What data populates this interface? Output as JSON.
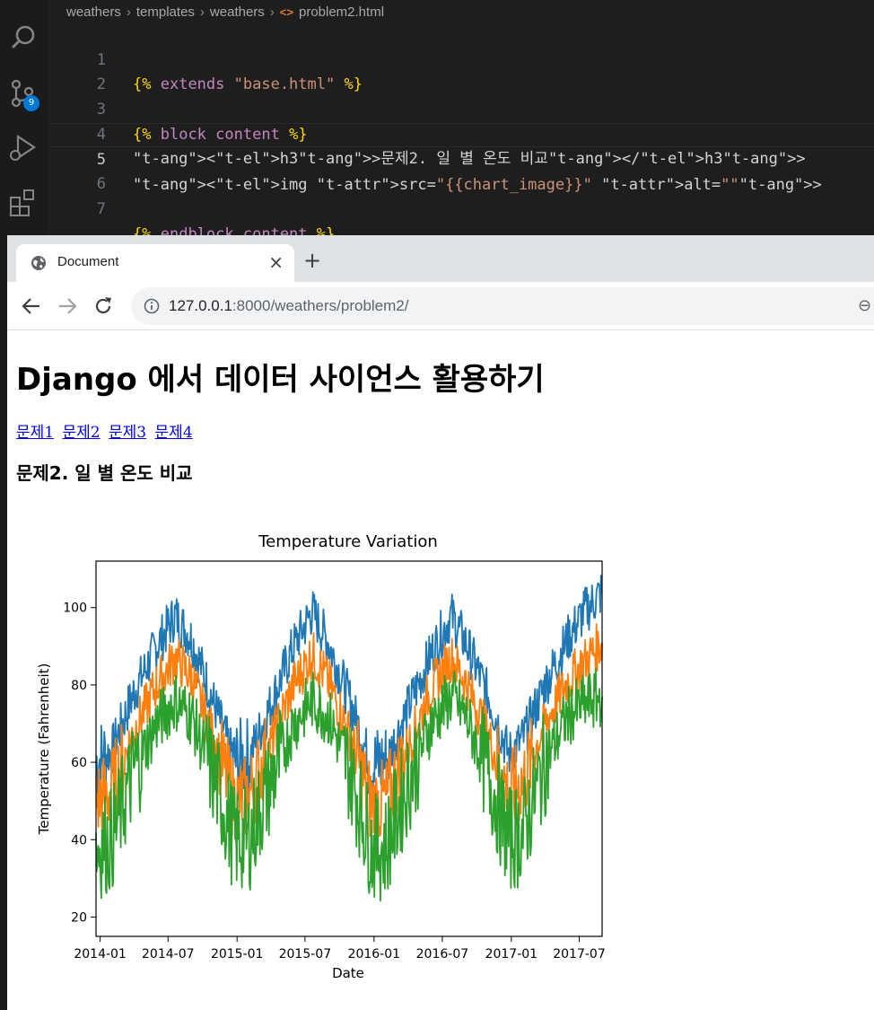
{
  "editor": {
    "breadcrumb": [
      "weathers",
      "templates",
      "weathers",
      "problem2.html"
    ],
    "scm_badge": "9",
    "lines": [
      {
        "num": "1",
        "text": "{% extends \"base.html\" %}"
      },
      {
        "num": "2",
        "text": ""
      },
      {
        "num": "3",
        "text": "{% block content %}"
      },
      {
        "num": "4",
        "text": "<h3>문제2. 일 별 온도 비교</h3>"
      },
      {
        "num": "5",
        "text": "<img src=\"{{chart_image}}\" alt=\"\">"
      },
      {
        "num": "6",
        "text": ""
      },
      {
        "num": "7",
        "text": "{% endblock content %}"
      }
    ],
    "icons": [
      "search-icon",
      "source-control-icon",
      "run-debug-icon",
      "extensions-icon"
    ]
  },
  "browser": {
    "tab_title": "Document",
    "url_host": "127.0.0.1",
    "url_rest": ":8000/weathers/problem2/",
    "new_tab": "+",
    "close": "×"
  },
  "page": {
    "heading": "Django 에서 데이터 사이언스 활용하기",
    "links": [
      "문제1",
      "문제2",
      "문제3",
      "문제4"
    ],
    "subheading": "문제2. 일 별 온도 비교"
  },
  "chart_data": {
    "type": "line",
    "title": "Temperature Variation",
    "xlabel": "Date",
    "ylabel": "Temperature (Fahrenheit)",
    "x_ticks": [
      "2014-01",
      "2014-07",
      "2015-01",
      "2015-07",
      "2016-01",
      "2016-07",
      "2017-01",
      "2017-07"
    ],
    "y_ticks": [
      20,
      40,
      60,
      80,
      100
    ],
    "x_range": [
      "2013-12-21",
      "2017-08-31"
    ],
    "ylim": [
      15,
      112
    ],
    "grid": false,
    "legend": "none",
    "series": [
      {
        "color": "#1f77b4",
        "x": [
          "2013-12-21",
          "2014-02-01",
          "2014-04-01",
          "2014-06-01",
          "2014-07-20",
          "2014-09-01",
          "2014-11-01",
          "2014-12-25",
          "2015-02-01",
          "2015-04-01",
          "2015-06-01",
          "2015-07-20",
          "2015-09-01",
          "2015-11-01",
          "2015-12-25",
          "2016-02-01",
          "2016-04-01",
          "2016-06-01",
          "2016-07-25",
          "2016-09-01",
          "2016-11-01",
          "2016-12-25",
          "2017-02-01",
          "2017-04-01",
          "2017-06-01",
          "2017-07-15",
          "2017-08-31"
        ],
        "y": [
          60,
          63,
          78,
          90,
          98,
          92,
          75,
          60,
          61,
          75,
          90,
          99,
          91,
          75,
          59,
          60,
          74,
          88,
          98,
          91,
          77,
          62,
          66,
          80,
          92,
          99,
          104
        ]
      },
      {
        "color": "#ff7f0e",
        "x": [
          "2013-12-21",
          "2014-02-01",
          "2014-04-01",
          "2014-06-01",
          "2014-07-20",
          "2014-09-01",
          "2014-11-01",
          "2014-12-25",
          "2015-02-01",
          "2015-04-01",
          "2015-06-01",
          "2015-07-20",
          "2015-09-01",
          "2015-11-01",
          "2015-12-25",
          "2016-02-01",
          "2016-04-01",
          "2016-06-01",
          "2016-07-25",
          "2016-09-01",
          "2016-11-01",
          "2016-12-25",
          "2017-02-01",
          "2017-04-01",
          "2017-06-01",
          "2017-07-15",
          "2017-08-31"
        ],
        "y": [
          50,
          53,
          68,
          80,
          87,
          82,
          66,
          50,
          51,
          65,
          80,
          88,
          81,
          66,
          49,
          50,
          64,
          79,
          87,
          81,
          67,
          52,
          55,
          70,
          81,
          86,
          91
        ]
      },
      {
        "color": "#2ca02c",
        "x": [
          "2013-12-21",
          "2014-02-01",
          "2014-04-01",
          "2014-06-01",
          "2014-07-20",
          "2014-09-01",
          "2014-11-01",
          "2014-12-25",
          "2015-02-01",
          "2015-04-01",
          "2015-06-01",
          "2015-07-20",
          "2015-09-01",
          "2015-11-01",
          "2015-12-25",
          "2016-02-01",
          "2016-04-01",
          "2016-06-01",
          "2016-07-25",
          "2016-09-01",
          "2016-11-01",
          "2016-12-25",
          "2017-02-01",
          "2017-04-01",
          "2017-06-01",
          "2017-07-15",
          "2017-08-31"
        ],
        "y": [
          38,
          40,
          58,
          70,
          76,
          72,
          56,
          40,
          40,
          55,
          70,
          76,
          72,
          57,
          38,
          38,
          55,
          70,
          77,
          72,
          57,
          40,
          42,
          60,
          72,
          75,
          77
        ]
      }
    ]
  }
}
